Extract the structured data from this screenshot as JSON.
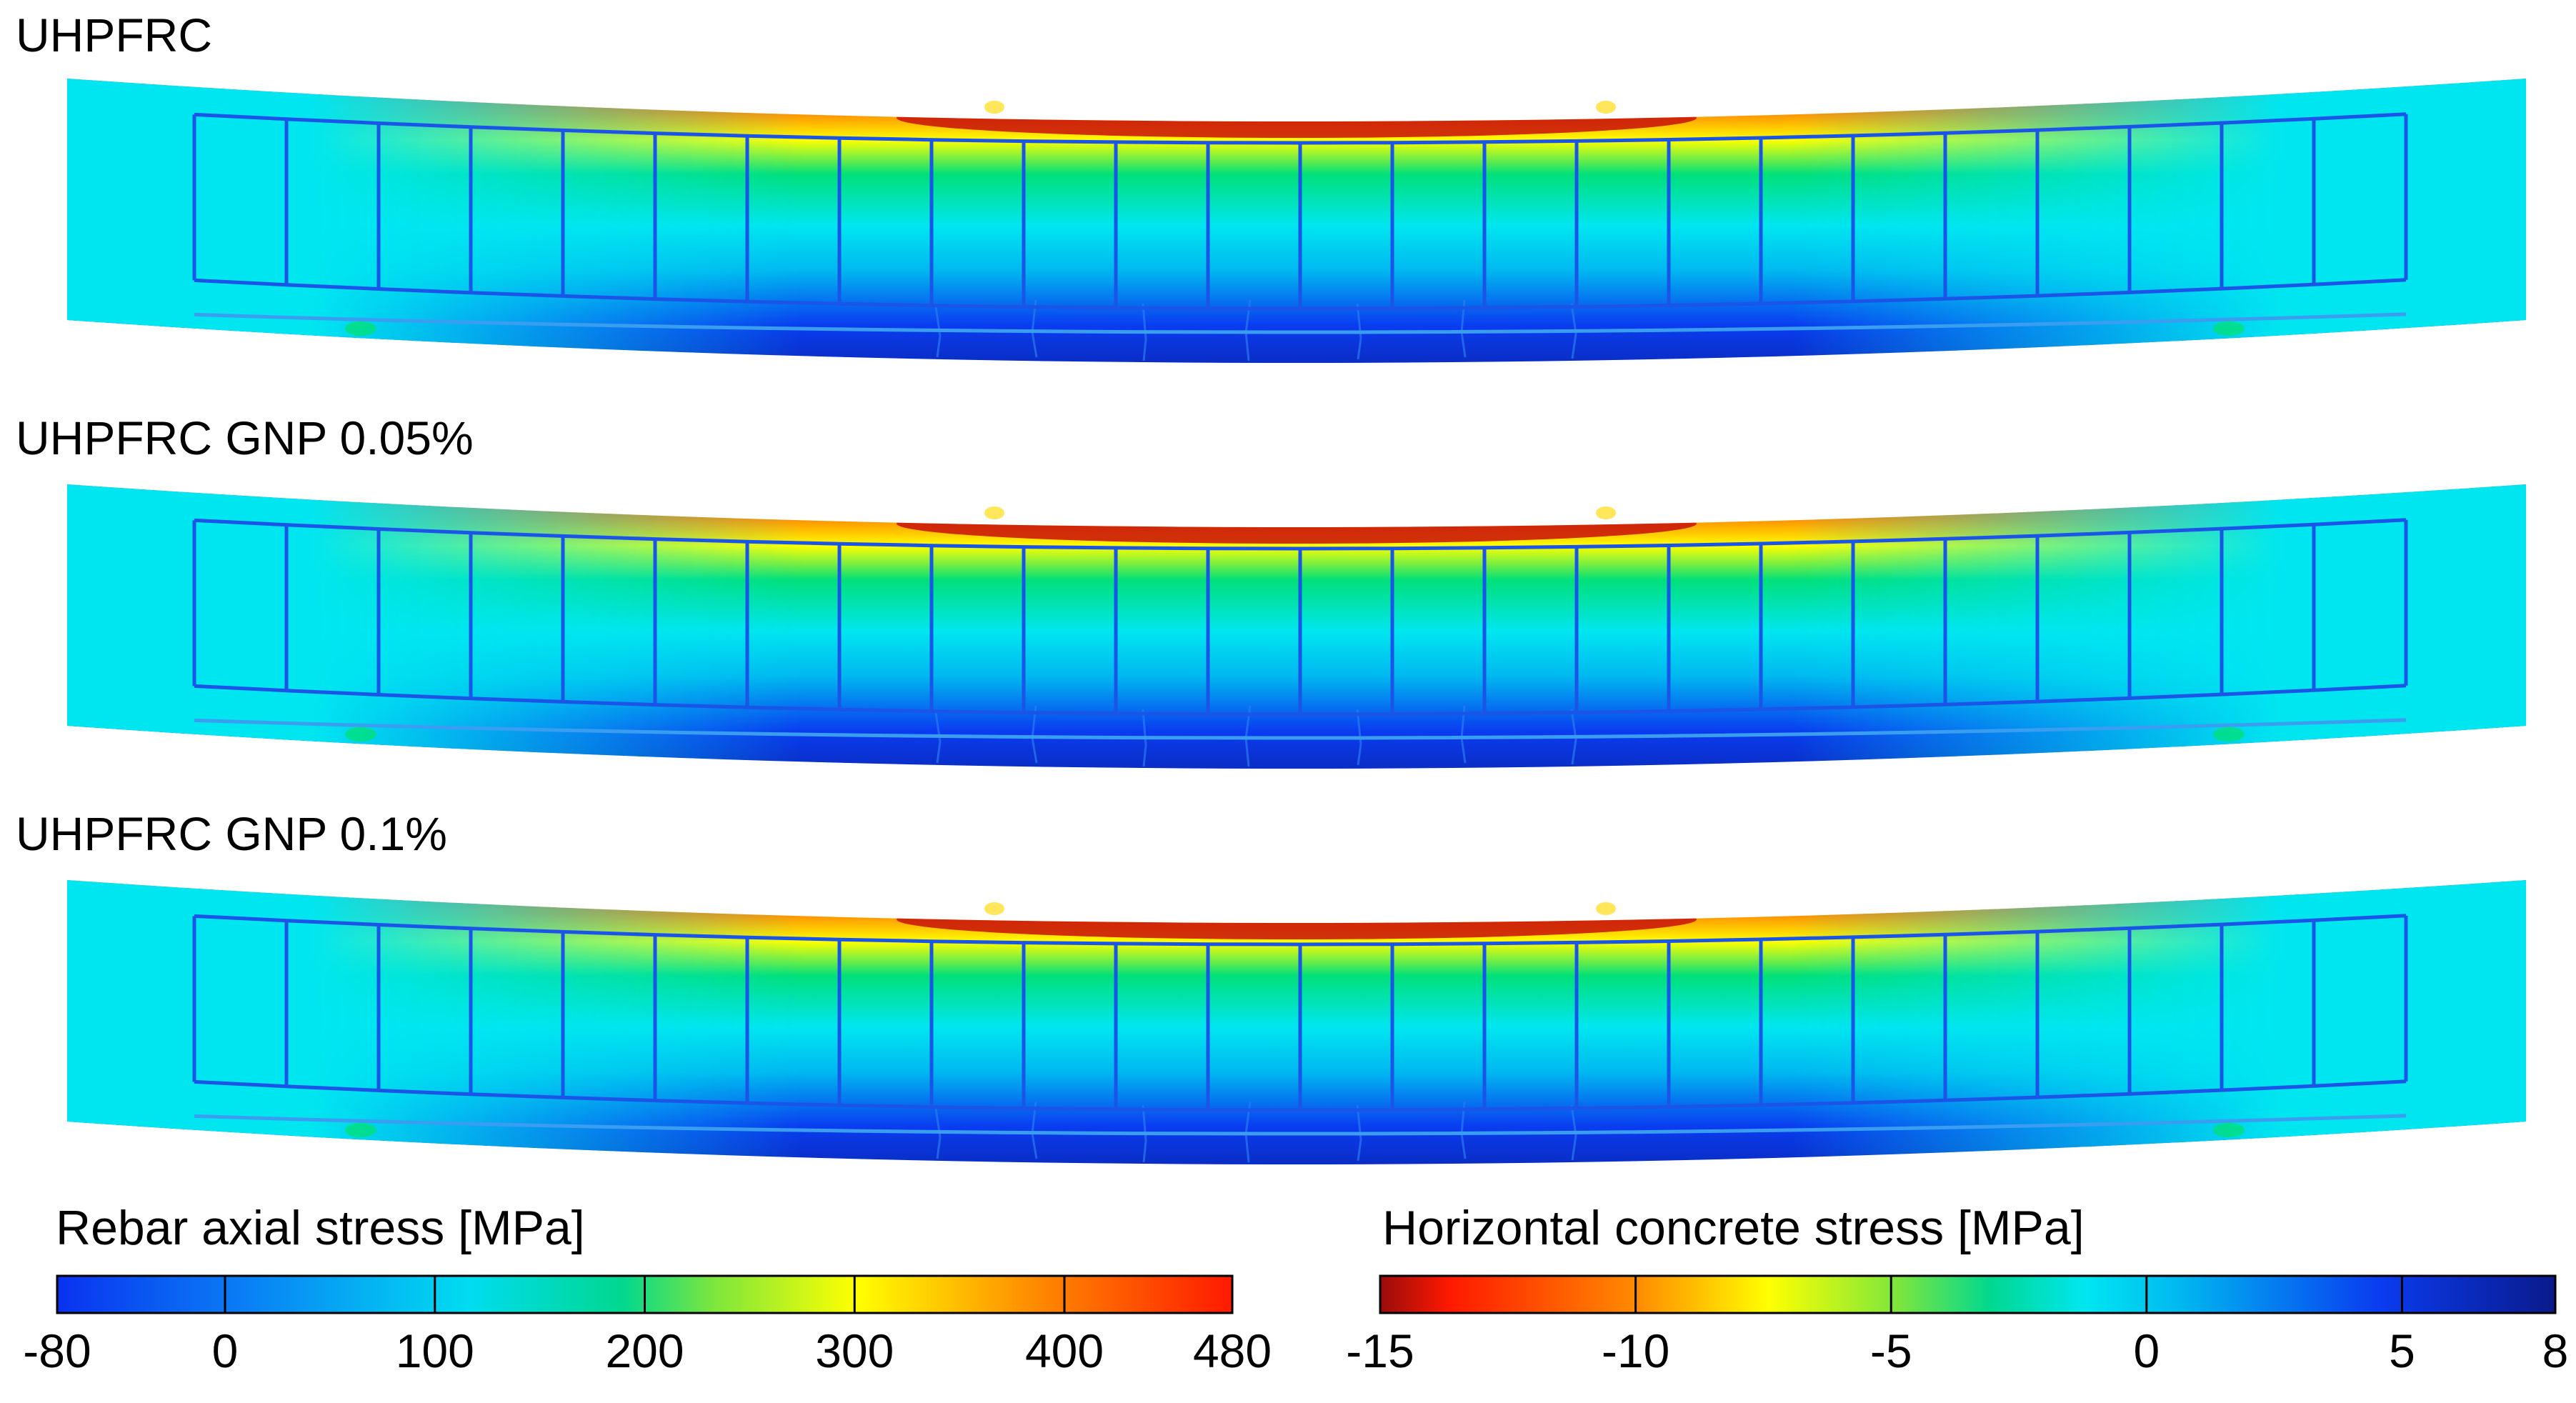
{
  "panels": [
    {
      "title": "UHPFRC"
    },
    {
      "title": "UHPFRC GNP 0.05%"
    },
    {
      "title": "UHPFRC GNP 0.1%"
    }
  ],
  "colorbars": {
    "rebar": {
      "title": "Rebar axial stress [MPa]",
      "ticks": [
        "-80",
        "0",
        "100",
        "200",
        "300",
        "400",
        "480"
      ],
      "tick_values": [
        -80,
        0,
        100,
        200,
        300,
        400,
        480
      ],
      "range": [
        -80,
        480
      ]
    },
    "concrete": {
      "title": "Horizontal concrete stress [MPa]",
      "ticks": [
        "-15",
        "-10",
        "-5",
        "0",
        "5",
        "8"
      ],
      "tick_values": [
        -15,
        -10,
        -5,
        0,
        5,
        8
      ],
      "range": [
        -15,
        8
      ]
    }
  },
  "colors": {
    "dark_red": "#9a0c0c",
    "red": "#ff1a00",
    "orange": "#ff8c00",
    "yellow": "#ffff00",
    "green": "#00e07a",
    "cyan": "#00e6f0",
    "light_blue": "#00b8f0",
    "blue": "#0a3cf0",
    "dark_blue": "#0a1a8c",
    "rebar_line": "#1a55e8"
  }
}
